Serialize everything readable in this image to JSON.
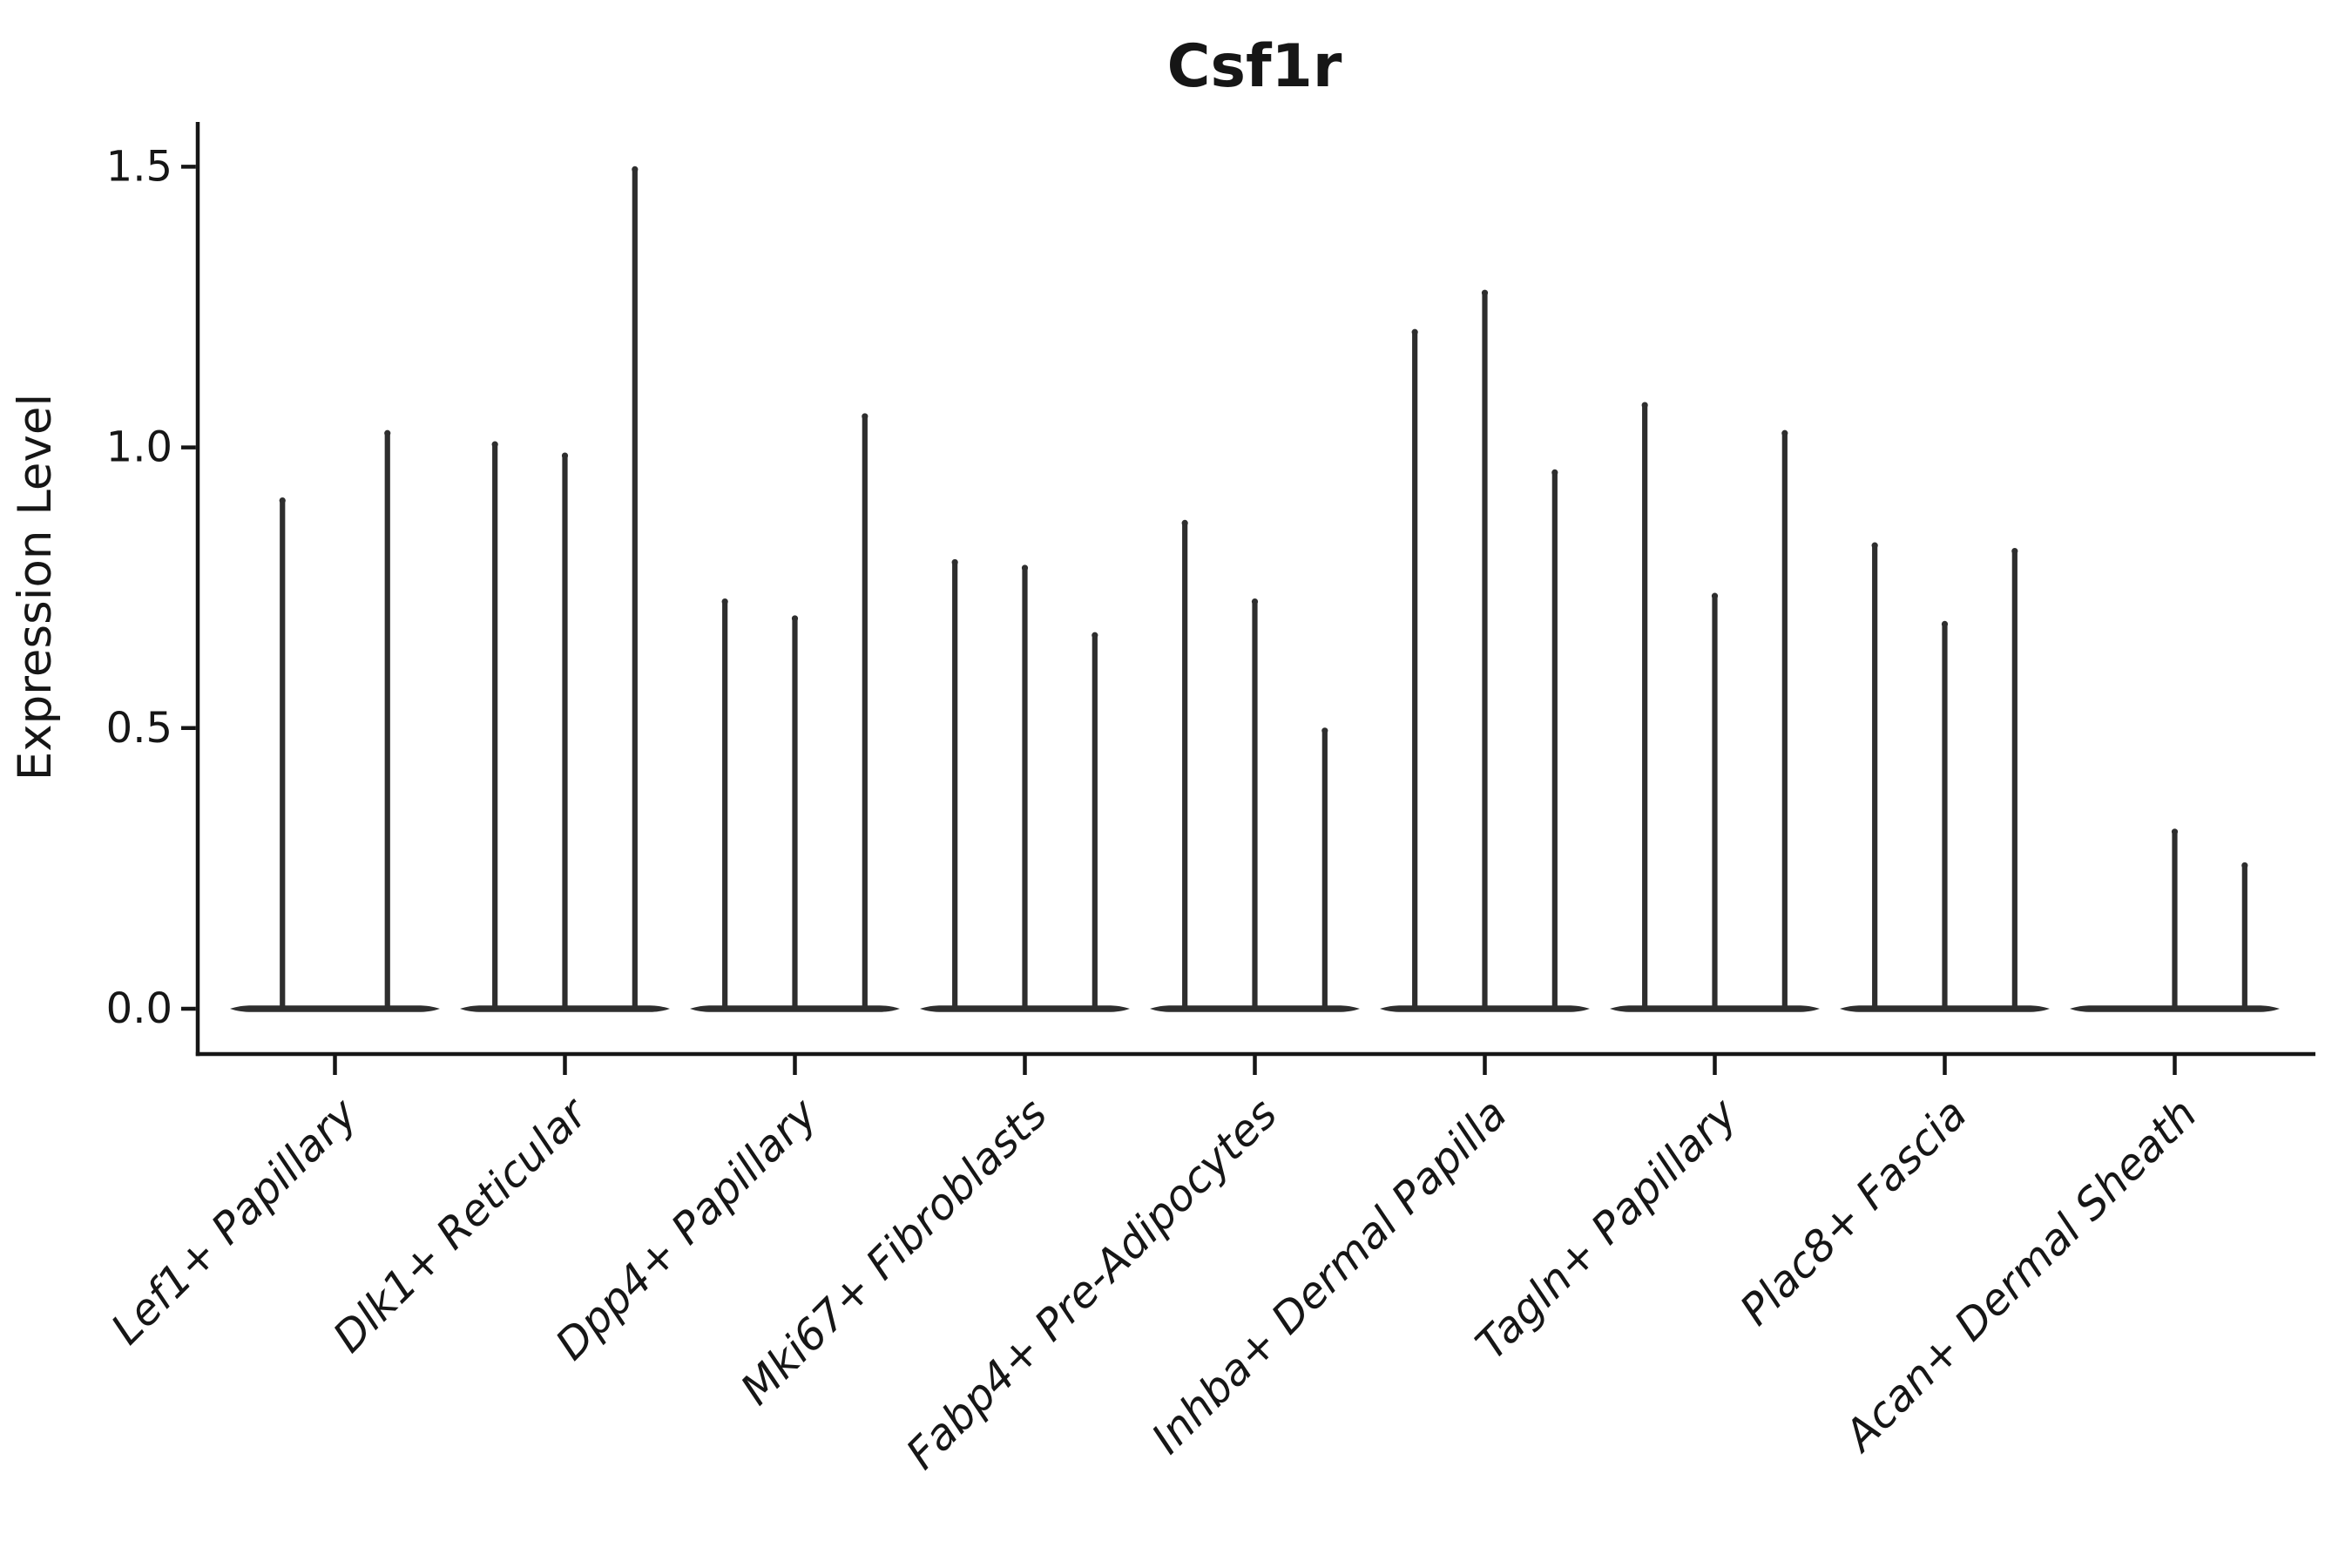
{
  "figure": {
    "background": "#ffffff",
    "ink_color": "#161616",
    "violin_color": "#2e2e2e"
  },
  "chart_data": {
    "type": "violin",
    "title": "Csf1r",
    "xlabel": "",
    "ylabel": "Expression Level",
    "yticks": [
      "0.0",
      "0.5",
      "1.0",
      "1.5"
    ],
    "ytick_values": [
      0.0,
      0.5,
      1.0,
      1.5
    ],
    "ylim": [
      -0.08,
      1.58
    ],
    "grid": false,
    "legend": null,
    "categories": [
      "Lef1+ Papillary",
      "Dlk1+ Reticular",
      "Dpp4+ Papillary",
      "Mki67+ Fibroblasts",
      "Fabp4+ Pre-Adipocytes",
      "Inhba+ Dermal Papilla",
      "Tagln+ Papillary",
      "Plac8+ Fascia",
      "Acan+ Dermal Sheath"
    ],
    "series": [
      {
        "category": "Lef1+ Papillary",
        "violin_peaks": [
          0.91,
          1.03
        ]
      },
      {
        "category": "Dlk1+ Reticular",
        "violin_peaks": [
          1.01,
          0.99,
          1.5
        ]
      },
      {
        "category": "Dpp4+ Papillary",
        "violin_peaks": [
          0.73,
          0.7,
          1.06
        ]
      },
      {
        "category": "Mki67+ Fibroblasts",
        "violin_peaks": [
          0.8,
          0.79,
          0.67
        ]
      },
      {
        "category": "Fabp4+ Pre-Adipocytes",
        "violin_peaks": [
          0.87,
          0.73,
          0.5
        ]
      },
      {
        "category": "Inhba+ Dermal Papilla",
        "violin_peaks": [
          1.21,
          1.28,
          0.96
        ]
      },
      {
        "category": "Tagln+ Papillary",
        "violin_peaks": [
          1.08,
          0.74,
          1.03
        ]
      },
      {
        "category": "Plac8+ Fascia",
        "violin_peaks": [
          0.83,
          0.69,
          0.82
        ]
      },
      {
        "category": "Acan+ Dermal Sheath",
        "violin_peaks": [
          0.0,
          0.32,
          0.26
        ]
      }
    ],
    "violin_shape_note": "Each violin is a flat lens at expression 0 with a thin spike rising to its peak value; a peak of 0 means a flat violin with no spike."
  }
}
